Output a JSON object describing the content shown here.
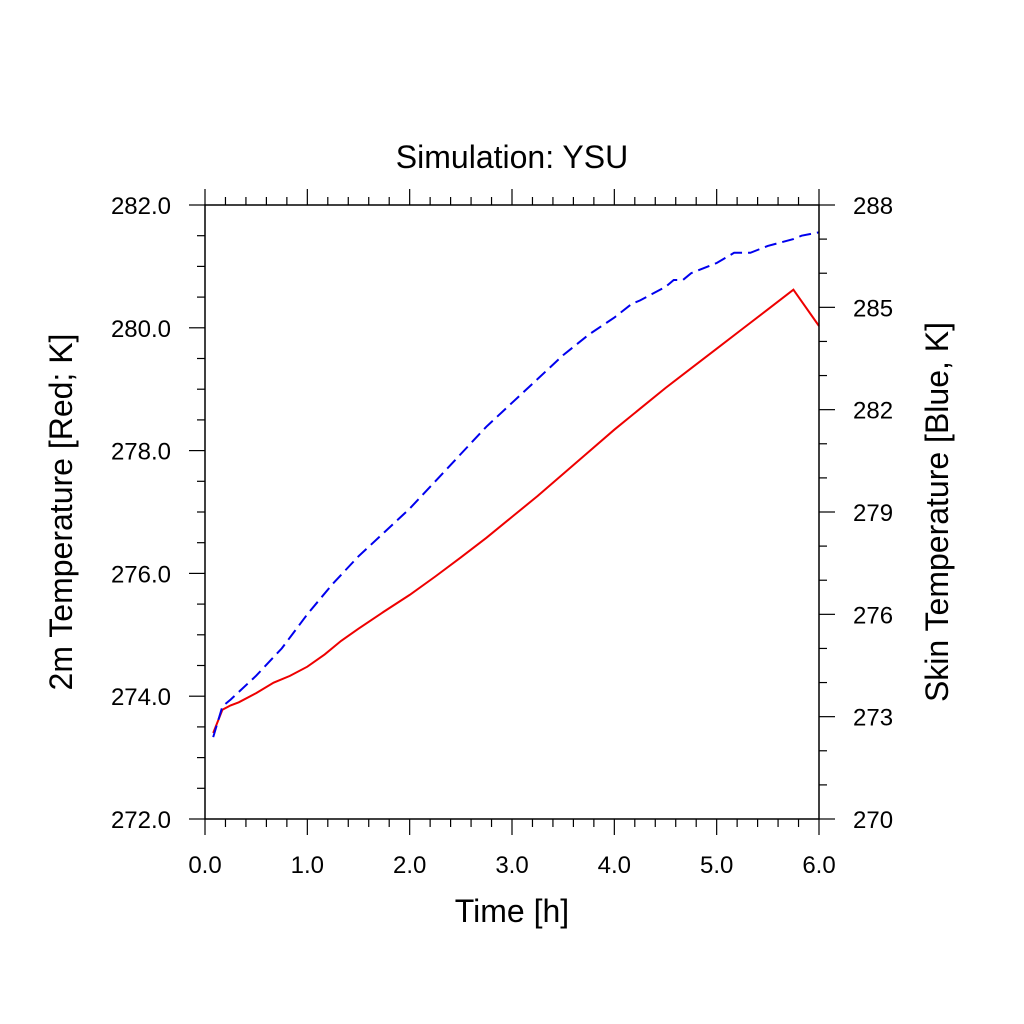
{
  "chart_data": {
    "type": "line",
    "title": "Simulation: YSU",
    "xlabel": "Time [h]",
    "ylabel_left": "2m Temperature [Red; K]",
    "ylabel_right": "Skin Temperature [Blue, K]",
    "xlim": [
      0.0,
      6.0
    ],
    "ylim_left": [
      272.0,
      282.0
    ],
    "ylim_right": [
      270,
      288
    ],
    "x_ticks": [
      "0.0",
      "1.0",
      "2.0",
      "3.0",
      "4.0",
      "5.0",
      "6.0"
    ],
    "y_left_ticks": [
      "272.0",
      "274.0",
      "276.0",
      "278.0",
      "280.0",
      "282.0"
    ],
    "y_right_ticks": [
      "270",
      "273",
      "276",
      "279",
      "282",
      "285",
      "288"
    ],
    "grid": false,
    "series": [
      {
        "axis": "left",
        "color": "#ee0000",
        "style": "solid",
        "x": [
          0.08,
          0.17,
          0.25,
          0.33,
          0.5,
          0.67,
          0.83,
          1.0,
          1.17,
          1.33,
          1.5,
          1.75,
          2.0,
          2.25,
          2.5,
          2.75,
          3.0,
          3.25,
          3.5,
          3.75,
          4.0,
          4.25,
          4.5,
          4.75,
          5.0,
          5.25,
          5.5,
          5.75,
          6.0
        ],
        "values": [
          273.4,
          273.78,
          273.85,
          273.9,
          274.05,
          274.22,
          274.33,
          274.48,
          274.68,
          274.9,
          275.1,
          275.38,
          275.65,
          275.95,
          276.26,
          276.58,
          276.92,
          277.26,
          277.62,
          277.98,
          278.34,
          278.68,
          279.02,
          279.34,
          279.66,
          279.98,
          280.3,
          280.62,
          280.03
        ]
      },
      {
        "axis": "right",
        "color": "#0000ee",
        "style": "dashed",
        "x": [
          0.08,
          0.17,
          0.25,
          0.5,
          0.75,
          1.0,
          1.25,
          1.5,
          1.75,
          2.0,
          2.25,
          2.5,
          2.75,
          3.0,
          3.25,
          3.5,
          3.75,
          4.0,
          4.17,
          4.25,
          4.5,
          4.58,
          4.67,
          4.75,
          5.0,
          5.17,
          5.25,
          5.33,
          5.5,
          5.75,
          5.83,
          6.0
        ],
        "values": [
          272.4,
          273.3,
          273.5,
          274.2,
          275.0,
          276.0,
          276.9,
          277.7,
          278.4,
          279.1,
          279.9,
          280.7,
          281.5,
          282.2,
          282.9,
          283.6,
          284.2,
          284.7,
          285.1,
          285.2,
          285.6,
          285.8,
          285.8,
          286.0,
          286.3,
          286.6,
          286.6,
          286.6,
          286.8,
          287.0,
          287.1,
          287.2
        ]
      }
    ]
  }
}
